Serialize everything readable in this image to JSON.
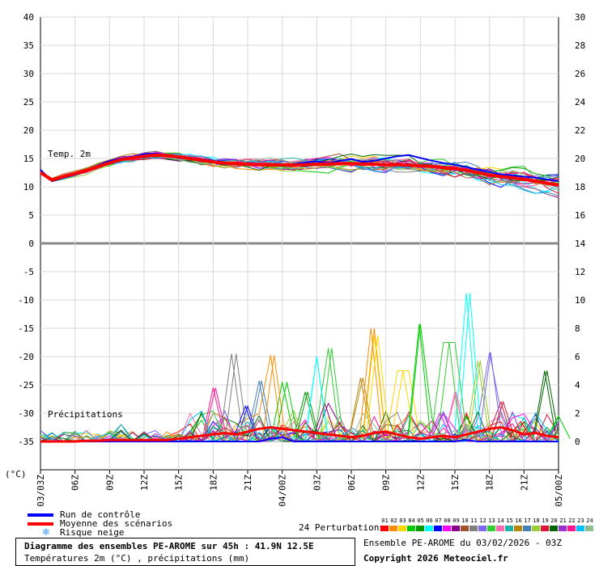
{
  "chart_data": {
    "type": "line",
    "left_axis": {
      "ticks": [
        40,
        35,
        30,
        25,
        20,
        15,
        10,
        5,
        0,
        -5,
        -10,
        -15,
        -20,
        -25,
        -30,
        -35
      ],
      "unit_label": "(°C)"
    },
    "right_axis": {
      "ticks": [
        30,
        28,
        26,
        24,
        22,
        20,
        18,
        16,
        14,
        12,
        10,
        8,
        6,
        4,
        2,
        0
      ]
    },
    "x_labels": [
      "03/03Z",
      "06Z",
      "09Z",
      "12Z",
      "15Z",
      "18Z",
      "21Z",
      "04/00Z",
      "03Z",
      "06Z",
      "09Z",
      "12Z",
      "15Z",
      "18Z",
      "21Z",
      "05/00Z"
    ],
    "temp_label": "Temp. 2m",
    "precip_label": "Précipitations",
    "hours": [
      0,
      1,
      2,
      3,
      4,
      5,
      6,
      7,
      8,
      9,
      10,
      11,
      12,
      13,
      14,
      15,
      16,
      17,
      18,
      19,
      20,
      21,
      22,
      23,
      24,
      25,
      26,
      27,
      28,
      29,
      30,
      31,
      32,
      33,
      34,
      35,
      36,
      37,
      38,
      39,
      40,
      41,
      42,
      43,
      44,
      45
    ],
    "temp_mean": [
      12.5,
      11.2,
      11.8,
      12.3,
      12.9,
      13.6,
      14.2,
      14.8,
      15.1,
      15.4,
      15.6,
      15.5,
      15.3,
      15.0,
      14.7,
      14.4,
      14.2,
      14.1,
      14.0,
      13.9,
      13.9,
      13.9,
      13.8,
      13.9,
      14.0,
      14.0,
      14.1,
      14.1,
      14.0,
      14.0,
      13.9,
      13.9,
      13.8,
      13.7,
      13.6,
      13.4,
      13.2,
      12.9,
      12.5,
      12.1,
      11.8,
      11.6,
      11.3,
      11.0,
      10.6,
      10.3
    ],
    "temp_control": [
      13.0,
      11.0,
      11.6,
      12.1,
      12.8,
      13.8,
      14.6,
      15.0,
      15.3,
      15.8,
      15.9,
      15.6,
      15.2,
      15.1,
      14.9,
      14.6,
      14.1,
      14.0,
      14.2,
      14.0,
      13.8,
      13.7,
      14.0,
      14.3,
      14.5,
      14.2,
      14.6,
      14.9,
      14.4,
      14.6,
      15.0,
      15.4,
      15.6,
      15.1,
      14.6,
      14.2,
      13.9,
      13.5,
      13.0,
      12.6,
      12.2,
      12.0,
      11.8,
      11.6,
      11.3,
      11.0
    ],
    "precip_mean": [
      0,
      0,
      0,
      0,
      0.05,
      0.05,
      0.1,
      0.1,
      0.1,
      0.1,
      0.1,
      0.1,
      0.2,
      0.3,
      0.4,
      0.5,
      0.6,
      0.5,
      0.7,
      0.9,
      1.0,
      0.9,
      0.8,
      0.7,
      0.6,
      0.5,
      0.4,
      0.3,
      0.4,
      0.6,
      0.7,
      0.5,
      0.3,
      0.2,
      0.3,
      0.4,
      0.3,
      0.5,
      0.7,
      0.9,
      1.0,
      0.8,
      0.5,
      0.6,
      0.4,
      0.3
    ],
    "precip_control": [
      0,
      0,
      0,
      0,
      0,
      0,
      0,
      0,
      0,
      0,
      0,
      0,
      0,
      0,
      0,
      0,
      0,
      0,
      0,
      0,
      0.2,
      0.3,
      0,
      0,
      0,
      0,
      0,
      0,
      0,
      0,
      0,
      0,
      0,
      0,
      0,
      0,
      0,
      0.1,
      0,
      0,
      0,
      0,
      0,
      0,
      0,
      0
    ],
    "perturbation_colors": [
      "#ff0000",
      "#ff8c00",
      "#ffd700",
      "#00cc00",
      "#009900",
      "#00ffff",
      "#0000ff",
      "#ff00ff",
      "#8b008b",
      "#a0522d",
      "#808080",
      "#7b68ee",
      "#32cd32",
      "#ff69b4",
      "#20b2aa",
      "#b8860b",
      "#4682b4",
      "#9acd32",
      "#dc143c",
      "#006400",
      "#9932cc",
      "#ff1493",
      "#00bfff",
      "#8fbc8f"
    ],
    "precip_peaks": [
      {
        "h": 7.0,
        "v": 1.2,
        "m": 14
      },
      {
        "h": 15.2,
        "v": 3.8,
        "m": 21
      },
      {
        "h": 16.6,
        "v": 6.2,
        "m": 10
      },
      {
        "h": 17.8,
        "v": 2.5,
        "m": 6
      },
      {
        "h": 19.2,
        "v": 4.3,
        "m": 16
      },
      {
        "h": 20.3,
        "v": 6.1,
        "m": 1
      },
      {
        "h": 21.4,
        "v": 4.2,
        "m": 3
      },
      {
        "h": 23.2,
        "v": 3.5,
        "m": 4
      },
      {
        "h": 24.0,
        "v": 6.0,
        "m": 5
      },
      {
        "h": 24.7,
        "v": 2.7,
        "m": 8
      },
      {
        "h": 25.3,
        "v": 6.6,
        "m": 12
      },
      {
        "h": 27.8,
        "v": 4.5,
        "m": 15
      },
      {
        "h": 28.7,
        "v": 8.0,
        "m": 1
      },
      {
        "h": 29.3,
        "v": 7.5,
        "m": 2
      },
      {
        "h": 31.5,
        "v": 5.0,
        "m": 2
      },
      {
        "h": 32.9,
        "v": 8.3,
        "m": 3
      },
      {
        "h": 34.7,
        "v": 2.0,
        "m": 7
      },
      {
        "h": 35.5,
        "v": 7.0,
        "m": 12
      },
      {
        "h": 36.1,
        "v": 3.5,
        "m": 13
      },
      {
        "h": 37.3,
        "v": 10.5,
        "m": 5
      },
      {
        "h": 38.2,
        "v": 5.7,
        "m": 17
      },
      {
        "h": 39.1,
        "v": 6.3,
        "m": 11
      },
      {
        "h": 40.2,
        "v": 2.8,
        "m": 18
      },
      {
        "h": 41.7,
        "v": 1.4,
        "m": 0
      },
      {
        "h": 43.8,
        "v": 5.0,
        "m": 19
      },
      {
        "h": 45.0,
        "v": 1.8,
        "m": 3
      }
    ],
    "xlim": [
      0,
      45
    ],
    "temp_ylim": [
      0,
      40
    ],
    "precip_ylim": [
      0,
      14
    ]
  },
  "legend": {
    "control": "Run de contrôle",
    "control_color": "#0000ff",
    "mean": "Moyenne des scénarios",
    "mean_color": "#ff0000",
    "snow": "Risque neige",
    "snow_icon": "snowflake-icon",
    "perturbations_label": "24 Perturbations",
    "perturbation_numbers": [
      "01",
      "02",
      "03",
      "04",
      "05",
      "06",
      "07",
      "08",
      "09",
      "10",
      "11",
      "12",
      "13",
      "14",
      "15",
      "16",
      "17",
      "18",
      "19",
      "20",
      "21",
      "22",
      "23",
      "24"
    ]
  },
  "footer": {
    "title": "Diagramme des ensembles PE-AROME sur 45h : 41.9N 12.5E",
    "subtitle": "Températures 2m (°C) , précipitations (mm)",
    "ensemble_info": "Ensemble PE-AROME du 03/02/2026 - 03Z",
    "copyright": "Copyright 2026 Meteociel.fr"
  }
}
